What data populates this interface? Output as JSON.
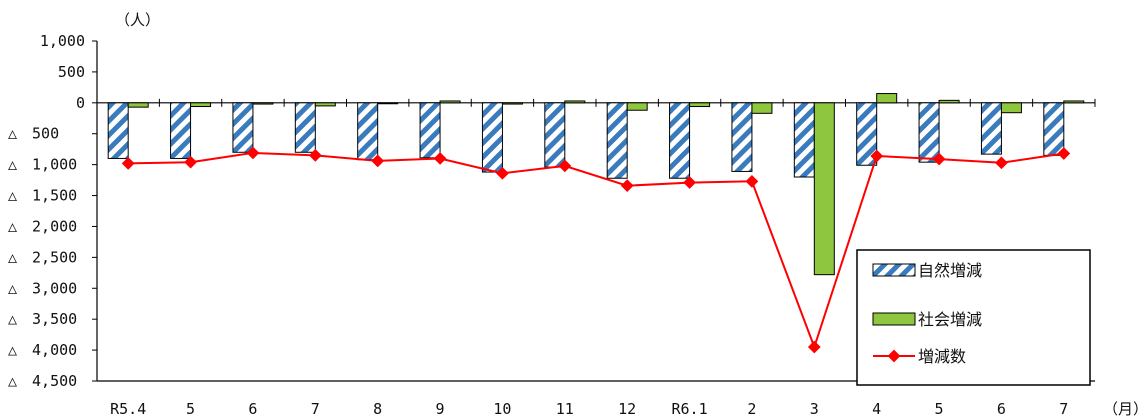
{
  "chart_data": {
    "type": "bar",
    "y_unit": "（人）",
    "x_unit": "（月）",
    "categories": [
      "R5.4",
      "5",
      "6",
      "7",
      "8",
      "9",
      "10",
      "11",
      "12",
      "R6.1",
      "2",
      "3",
      "4",
      "5",
      "6",
      "7"
    ],
    "ylim": [
      -4500,
      1000
    ],
    "yticks": [
      1000,
      500,
      0,
      -500,
      -1000,
      -1500,
      -2000,
      -2500,
      -3000,
      -3500,
      -4000,
      -4500
    ],
    "ytick_labels": [
      "1,000",
      "500",
      "0",
      "△　500",
      "△　1,000",
      "△　1,500",
      "△　2,000",
      "△　2,500",
      "△　3,000",
      "△　3,500",
      "△　4,000",
      "△　4,500"
    ],
    "grid": false,
    "legend_position": "lower-right",
    "series": [
      {
        "name": "自然増減",
        "type": "bar",
        "pattern": "diagonal-stripes",
        "color": "#3a7bbd",
        "values": [
          -900,
          -900,
          -800,
          -800,
          -920,
          -890,
          -1120,
          -1040,
          -1220,
          -1220,
          -1110,
          -1200,
          -1010,
          -960,
          -830,
          -850
        ]
      },
      {
        "name": "社会増減",
        "type": "bar",
        "color": "#8ec63f",
        "values": [
          -70,
          -60,
          -20,
          -50,
          -15,
          30,
          -20,
          30,
          -120,
          -60,
          -170,
          -2780,
          150,
          40,
          -160,
          30
        ]
      },
      {
        "name": "増減数",
        "type": "line",
        "color": "#ff0000",
        "values": [
          -980,
          -960,
          -810,
          -850,
          -940,
          -900,
          -1140,
          -1020,
          -1340,
          -1290,
          -1270,
          -3950,
          -860,
          -910,
          -970,
          -820
        ]
      }
    ]
  }
}
